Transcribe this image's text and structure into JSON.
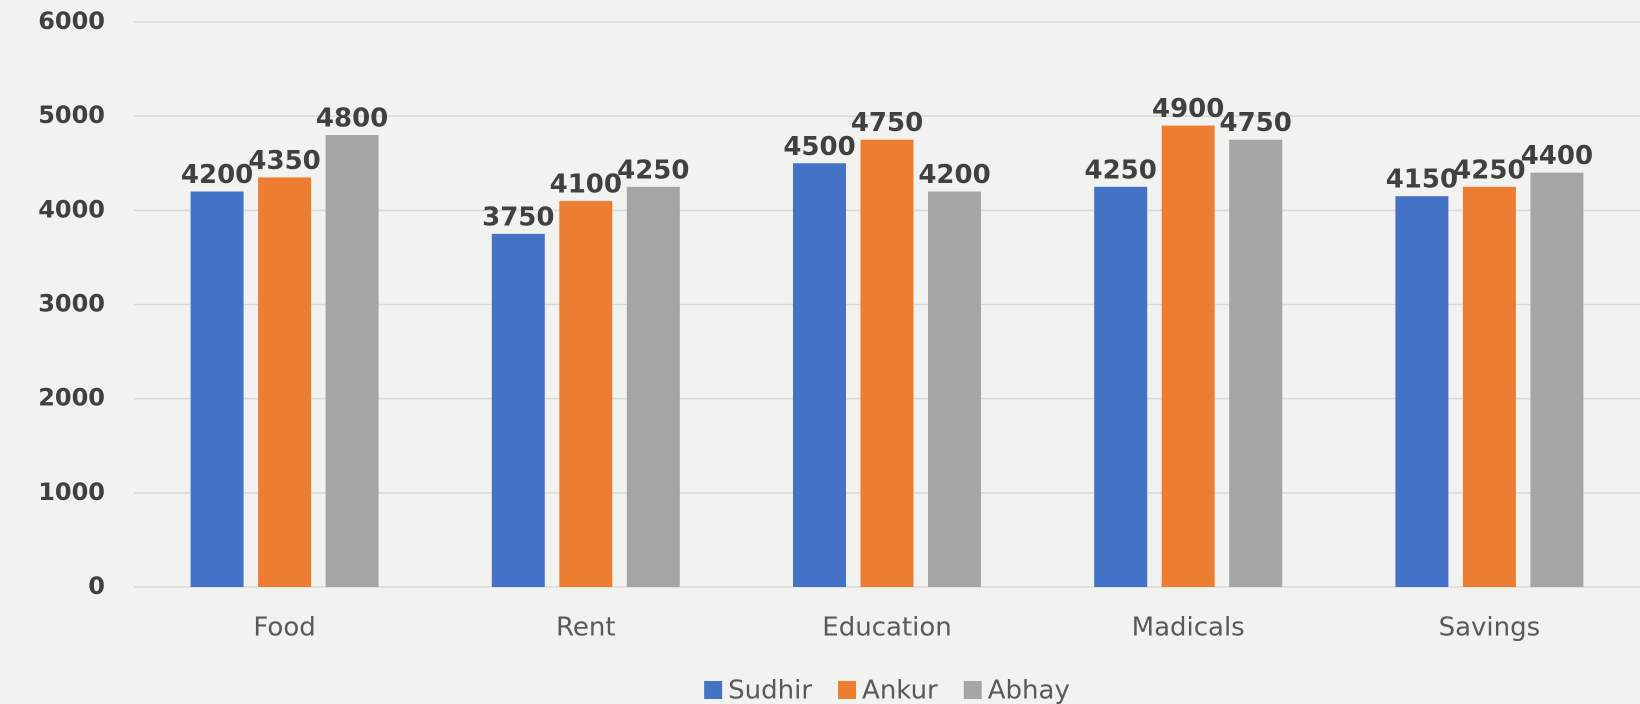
{
  "chart_data": {
    "type": "bar",
    "categories": [
      "Food",
      "Rent",
      "Education",
      "Madicals",
      "Savings"
    ],
    "series": [
      {
        "name": "Sudhir",
        "color": "#4472c4",
        "values": [
          4200,
          3750,
          4500,
          4250,
          4150
        ]
      },
      {
        "name": "Ankur",
        "color": "#ed7d31",
        "values": [
          4350,
          4100,
          4750,
          4900,
          4250
        ]
      },
      {
        "name": "Abhay",
        "color": "#a5a5a5",
        "values": [
          4800,
          4250,
          4200,
          4750,
          4400
        ]
      }
    ],
    "ylim": [
      0,
      6000
    ],
    "yticks": [
      0,
      1000,
      2000,
      3000,
      4000,
      5000,
      6000
    ],
    "grid": true,
    "legend": "bottom"
  }
}
